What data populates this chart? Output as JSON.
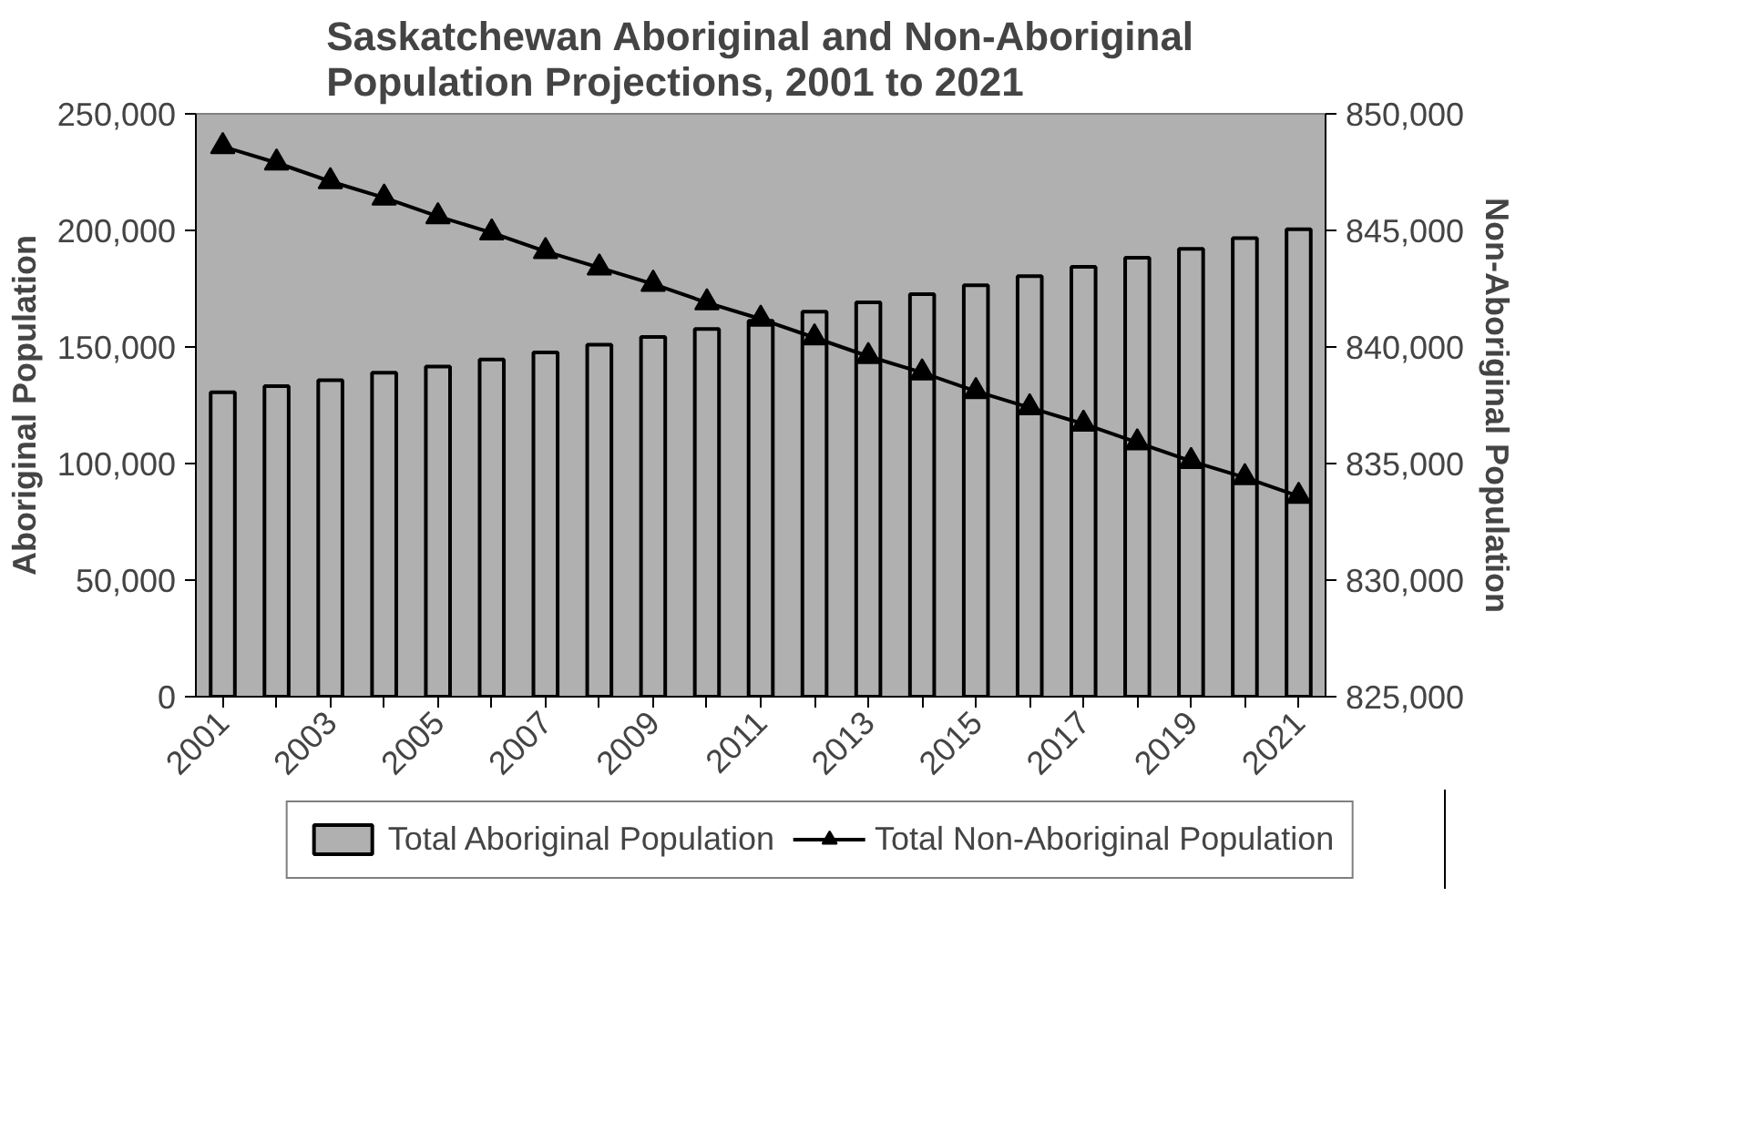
{
  "chart_data": {
    "type": "bar",
    "title": "Saskatchewan Aboriginal and Non-Aboriginal\nPopulation Projections, 2001 to 2021",
    "ylabel": "Aboriginal Population",
    "y2label": "Non-Aboriginal Population",
    "categories": [
      "2001",
      null,
      "2003",
      null,
      "2005",
      null,
      "2007",
      null,
      "2009",
      null,
      "2011",
      null,
      "2013",
      null,
      "2015",
      null,
      "2017",
      null,
      "2019",
      null,
      "2021"
    ],
    "series": [
      {
        "name": "Total Aboriginal Population",
        "color": "#b0b0b0",
        "values": [
          130600,
          133200,
          135700,
          139000,
          141600,
          144600,
          147700,
          151000,
          154300,
          157700,
          161200,
          165100,
          169100,
          172700,
          176500,
          180400,
          184400,
          188300,
          192100,
          196700,
          200500
        ]
      },
      {
        "name": "Total Non-Aboriginal Population",
        "type": "line",
        "axis": "y2",
        "color": "#000000",
        "marker": "triangle",
        "values": [
          848600,
          847900,
          847100,
          846400,
          845600,
          844900,
          844100,
          843400,
          842700,
          841900,
          841200,
          840400,
          839600,
          838900,
          838100,
          837400,
          836700,
          835900,
          835100,
          834400,
          833600
        ]
      }
    ],
    "ylim": [
      0,
      250000
    ],
    "yticks": [
      {
        "value": 0,
        "label": "0"
      },
      {
        "value": 50000,
        "label": "50,000"
      },
      {
        "value": 100000,
        "label": "100,000"
      },
      {
        "value": 150000,
        "label": "150,000"
      },
      {
        "value": 200000,
        "label": "200,000"
      },
      {
        "value": 250000,
        "label": "250,000"
      }
    ],
    "y2lim": [
      825000,
      850000
    ],
    "y2ticks": [
      {
        "value": 825000,
        "label": "825,000"
      },
      {
        "value": 830000,
        "label": "830,000"
      },
      {
        "value": 835000,
        "label": "835,000"
      },
      {
        "value": 840000,
        "label": "840,000"
      },
      {
        "value": 845000,
        "label": "845,000"
      },
      {
        "value": 850000,
        "label": "850,000"
      }
    ],
    "grid": false,
    "legend": "bottom"
  }
}
